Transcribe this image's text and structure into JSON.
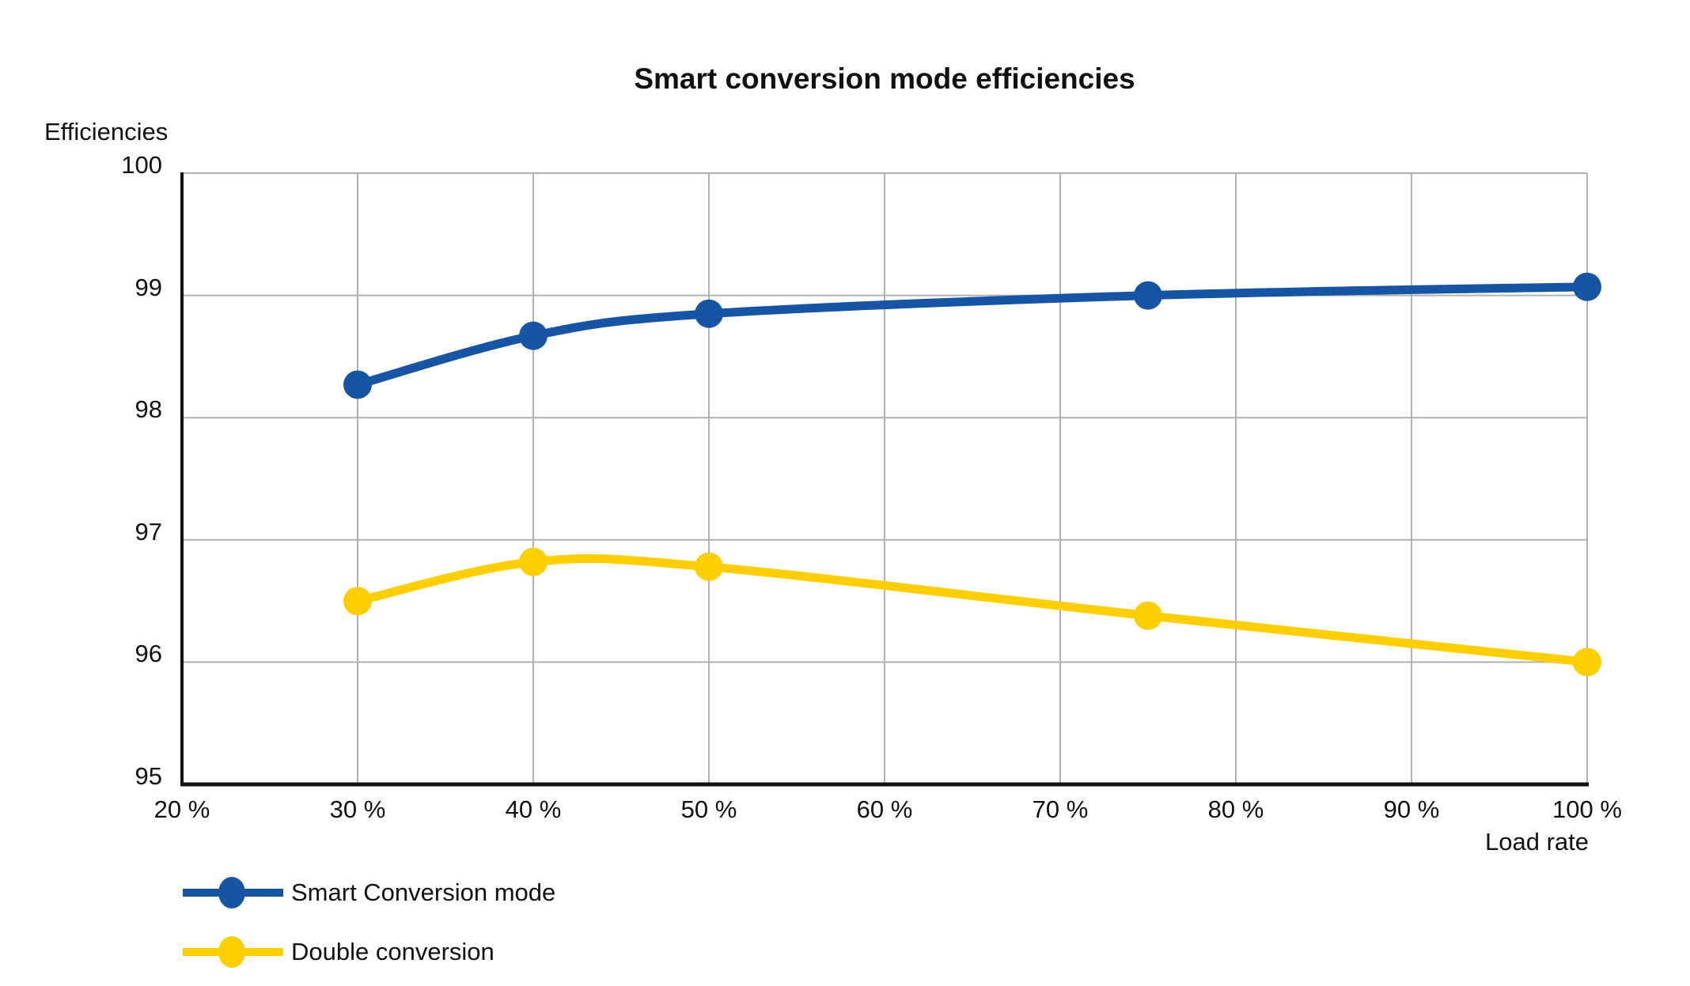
{
  "title": "Smart conversion mode efficiencies",
  "y_axis_title": "Efficiencies",
  "x_axis_title": "Load rate",
  "colors": {
    "series_blue": "#1754A4",
    "series_yellow": "#FFCE00",
    "grid": "#b0b0b0",
    "axis": "#111111",
    "text": "#111111",
    "background": "#ffffff"
  },
  "legend": {
    "items": [
      {
        "label": "Smart Conversion mode",
        "color": "#1754A4"
      },
      {
        "label": "Double conversion",
        "color": "#FFCE00"
      }
    ]
  },
  "chart_data": {
    "type": "line",
    "title": "Smart conversion mode efficiencies",
    "xlabel": "Load rate",
    "ylabel": "Efficiencies",
    "x": [
      30,
      40,
      50,
      75,
      100
    ],
    "series": [
      {
        "name": "Smart Conversion mode",
        "color": "#1754A4",
        "values": [
          98.27,
          98.67,
          98.85,
          99.0,
          99.07
        ]
      },
      {
        "name": "Double conversion",
        "color": "#FFCE00",
        "values": [
          96.5,
          96.82,
          96.78,
          96.38,
          96.0
        ]
      }
    ],
    "xlim": [
      20,
      100
    ],
    "ylim": [
      95,
      100
    ],
    "x_ticks": [
      20,
      30,
      40,
      50,
      60,
      70,
      80,
      90,
      100
    ],
    "x_tick_labels": [
      "20 %",
      "30 %",
      "40 %",
      "50 %",
      "60 %",
      "70 %",
      "80 %",
      "90 %",
      "100 %"
    ],
    "y_ticks": [
      95,
      96,
      97,
      98,
      99,
      100
    ],
    "y_tick_labels": [
      "95",
      "96",
      "97",
      "98",
      "99",
      "100"
    ],
    "grid": true,
    "marker": "circle",
    "smooth": true,
    "legend_position": "bottom-left"
  }
}
